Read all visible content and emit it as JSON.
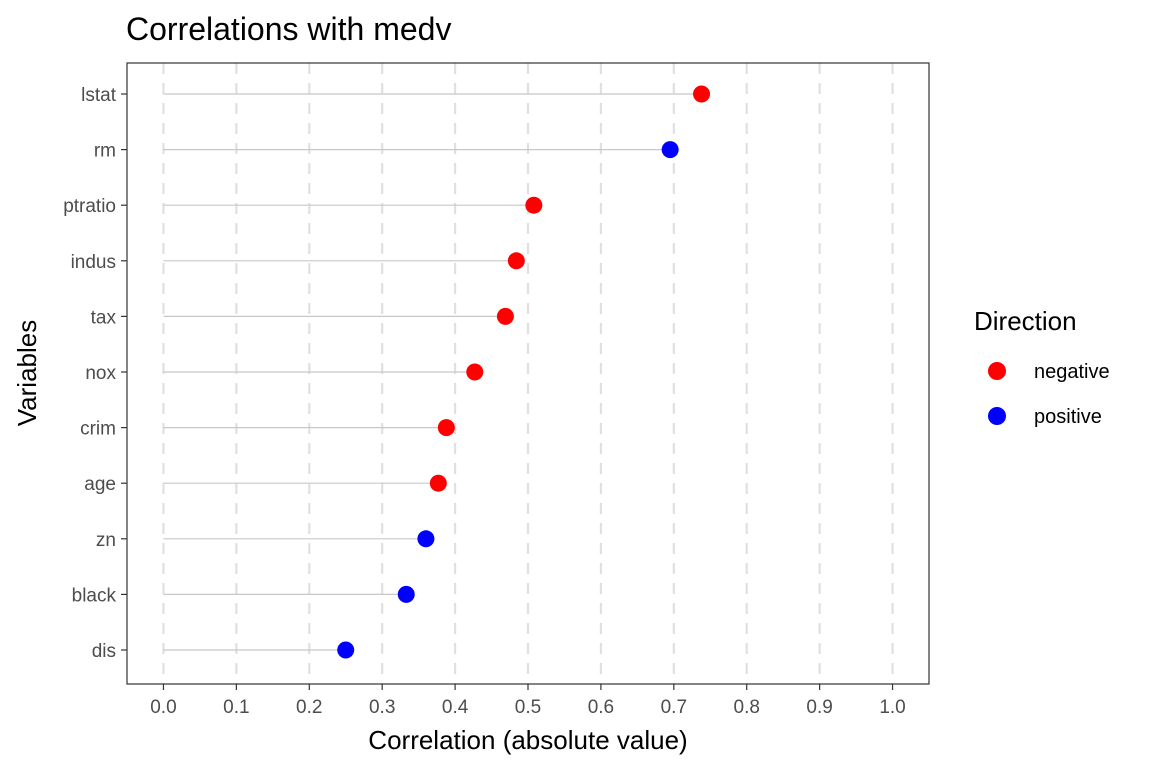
{
  "chart_data": {
    "type": "scatter",
    "subtype": "lollipop",
    "title": "Correlations with medv",
    "xlabel": "Correlation (absolute value)",
    "ylabel": "Variables",
    "xlim": [
      -0.05,
      1.05
    ],
    "x_ticks": [
      "0.0",
      "0.1",
      "0.2",
      "0.3",
      "0.4",
      "0.5",
      "0.6",
      "0.7",
      "0.8",
      "0.9",
      "1.0"
    ],
    "grid": "vertical dashed major gridlines",
    "legend": {
      "title": "Direction",
      "placement": "right",
      "entries": [
        {
          "label": "negative",
          "color": "#ff0000"
        },
        {
          "label": "positive",
          "color": "#0000ff"
        }
      ]
    },
    "points": [
      {
        "variable": "lstat",
        "value": 0.738,
        "direction": "negative"
      },
      {
        "variable": "rm",
        "value": 0.695,
        "direction": "positive"
      },
      {
        "variable": "ptratio",
        "value": 0.508,
        "direction": "negative"
      },
      {
        "variable": "indus",
        "value": 0.484,
        "direction": "negative"
      },
      {
        "variable": "tax",
        "value": 0.469,
        "direction": "negative"
      },
      {
        "variable": "nox",
        "value": 0.427,
        "direction": "negative"
      },
      {
        "variable": "crim",
        "value": 0.388,
        "direction": "negative"
      },
      {
        "variable": "age",
        "value": 0.377,
        "direction": "negative"
      },
      {
        "variable": "zn",
        "value": 0.36,
        "direction": "positive"
      },
      {
        "variable": "black",
        "value": 0.333,
        "direction": "positive"
      },
      {
        "variable": "dis",
        "value": 0.25,
        "direction": "positive"
      }
    ]
  }
}
